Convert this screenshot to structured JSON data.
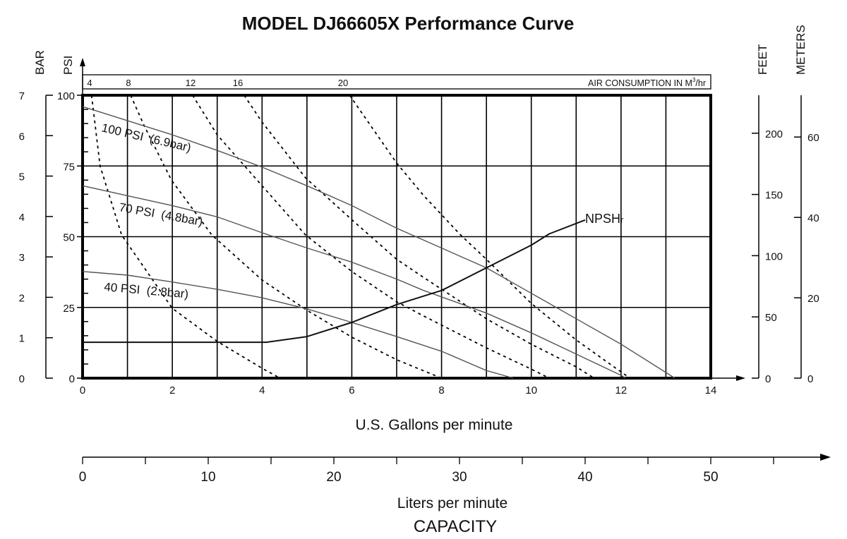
{
  "chart_data": {
    "type": "line",
    "title": "MODEL DJ66605X Performance Curve",
    "xlabel": "U.S. Gallons per minute",
    "xlabel2": "Liters per minute",
    "xlabel3": "CAPACITY",
    "xlim": [
      0,
      14
    ],
    "x_ticks": [
      "0",
      "2",
      "4",
      "6",
      "8",
      "10",
      "12",
      "14"
    ],
    "liters_ticks": [
      "0",
      "10",
      "20",
      "30",
      "40",
      "50"
    ],
    "ylim_psi": [
      0,
      100
    ],
    "psi_label": "PSI",
    "psi_ticks": [
      "0",
      "25",
      "50",
      "75",
      "100"
    ],
    "bar_label": "BAR",
    "bar_ticks": [
      "0",
      "1",
      "2",
      "3",
      "4",
      "5",
      "6",
      "7"
    ],
    "feet_label": "FEET",
    "feet_ticks": [
      "0",
      "50",
      "100",
      "150",
      "200"
    ],
    "meters_label": "METERS",
    "meters_ticks": [
      "0",
      "20",
      "40",
      "60"
    ],
    "grid": true,
    "air_consumption": {
      "label": "AIR CONSUMPTION IN M",
      "label_sup": "3",
      "label_unit": "/hr",
      "tick_labels": [
        "4",
        "8",
        "12",
        "16",
        "20"
      ]
    },
    "series": [
      {
        "name": "100 PSI  (6.9bar)",
        "style": "solid",
        "x": [
          0,
          1,
          2,
          3,
          4,
          5,
          6,
          7,
          9,
          10,
          11,
          12,
          13.2
        ],
        "y": [
          96,
          91,
          86,
          80.5,
          74.6,
          68,
          61,
          53,
          39,
          30,
          21,
          12,
          0
        ]
      },
      {
        "name": "70 PSI  (4.8bar)",
        "style": "solid",
        "x": [
          0,
          1,
          2,
          3,
          4,
          5,
          6,
          7,
          7.6,
          9,
          10,
          11,
          12,
          12.1
        ],
        "y": [
          68,
          64.5,
          61,
          57,
          51.4,
          46,
          41,
          35,
          31,
          23,
          16,
          8.5,
          1,
          0
        ]
      },
      {
        "name": "40 PSI  (2.8bar)",
        "style": "solid",
        "x": [
          0,
          1,
          2,
          3,
          4,
          5,
          6,
          7,
          8,
          9,
          9.6
        ],
        "y": [
          37.7,
          36.4,
          34,
          31.4,
          28.4,
          24.5,
          19.7,
          14.7,
          9.5,
          2.7,
          0
        ]
      },
      {
        "name": "NPSHr",
        "style": "bold",
        "x": [
          0,
          4.1,
          5,
          6,
          7,
          8,
          9,
          10,
          10.4,
          11.2
        ],
        "y": [
          12.7,
          12.7,
          14.7,
          19.7,
          26,
          31,
          39,
          47,
          51,
          55.9
        ]
      }
    ],
    "air_curves": [
      {
        "name": "4",
        "x": [
          0.2,
          0.39,
          0.87,
          2,
          3,
          4,
          4.4
        ],
        "y": [
          100,
          75,
          50.6,
          24.7,
          13,
          3.5,
          0
        ]
      },
      {
        "name": "8",
        "x": [
          1.07,
          1.38,
          1.98,
          2.88,
          4,
          5,
          6,
          7,
          8
        ],
        "y": [
          100,
          89,
          70,
          50.6,
          34.7,
          24,
          14.5,
          6.5,
          0
        ]
      },
      {
        "name": "12",
        "x": [
          2.45,
          3,
          4,
          4.97,
          6,
          7,
          7.6,
          9,
          10,
          10.4
        ],
        "y": [
          100,
          86,
          68,
          50.6,
          37.7,
          27,
          22,
          10.7,
          3.2,
          0
        ]
      },
      {
        "name": "16",
        "x": [
          3.6,
          4,
          4.97,
          6,
          7,
          7.6,
          9,
          10,
          11,
          11.4
        ],
        "y": [
          100,
          90.5,
          70.8,
          56,
          42,
          35.6,
          21,
          12,
          4,
          0
        ]
      },
      {
        "name": "20",
        "x": [
          5.95,
          7,
          7.6,
          8.4,
          9,
          10,
          11,
          12,
          12.2
        ],
        "y": [
          100,
          76,
          64.6,
          51,
          42,
          26.4,
          13.5,
          2.2,
          0
        ]
      }
    ]
  }
}
